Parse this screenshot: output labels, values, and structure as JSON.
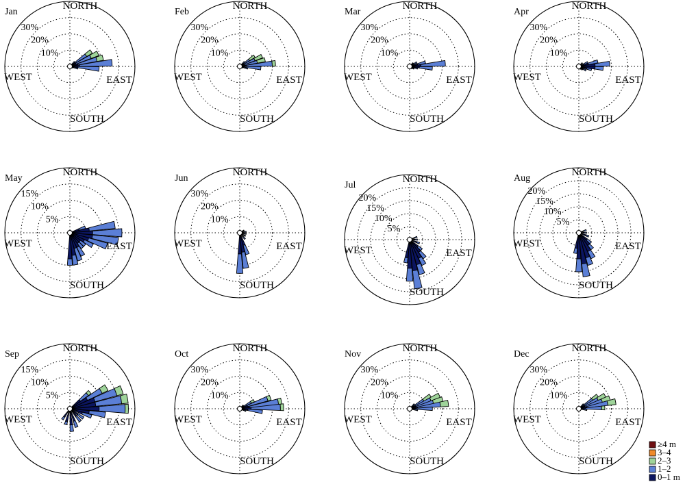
{
  "figure": {
    "direction_labels": {
      "north": "NORTH",
      "south": "SOUTH",
      "east": "EAST",
      "west": "WEST"
    },
    "legend": [
      {
        "label": "≥4 m",
        "color": "#6e0f12"
      },
      {
        "label": "3–4",
        "color": "#f08a2a"
      },
      {
        "label": "2–3",
        "color": "#9fd49a"
      },
      {
        "label": "1–2",
        "color": "#5b7fd6"
      },
      {
        "label": "0–1 m",
        "color": "#0b1560"
      }
    ]
  },
  "chart_data": [
    {
      "type": "rose",
      "title": "Jan",
      "rmax": 40,
      "rings": [
        10,
        20,
        30
      ],
      "ring_labels": [
        "10%",
        "20%",
        "30%"
      ],
      "bins": [
        {
          "dir": 55,
          "stack": [
            4,
            8,
            4
          ]
        },
        {
          "dir": 65,
          "stack": [
            4,
            10,
            5
          ]
        },
        {
          "dir": 75,
          "stack": [
            5,
            12,
            4
          ]
        },
        {
          "dir": 85,
          "stack": [
            6,
            20,
            0
          ]
        },
        {
          "dir": 95,
          "stack": [
            5,
            13,
            0
          ]
        },
        {
          "dir": 105,
          "stack": [
            2,
            3,
            0
          ]
        },
        {
          "dir": 45,
          "stack": [
            2,
            2,
            0
          ]
        },
        {
          "dir": 115,
          "stack": [
            1,
            1,
            0
          ]
        }
      ]
    },
    {
      "type": "rose",
      "title": "Feb",
      "rmax": 40,
      "rings": [
        10,
        20,
        30
      ],
      "ring_labels": [
        "10%",
        "20%",
        "30%"
      ],
      "bins": [
        {
          "dir": 55,
          "stack": [
            2,
            5,
            4
          ]
        },
        {
          "dir": 65,
          "stack": [
            3,
            7,
            5
          ]
        },
        {
          "dir": 75,
          "stack": [
            3,
            8,
            5
          ]
        },
        {
          "dir": 85,
          "stack": [
            4,
            16,
            2
          ]
        },
        {
          "dir": 95,
          "stack": [
            3,
            10,
            0
          ]
        },
        {
          "dir": 105,
          "stack": [
            2,
            3,
            0
          ]
        },
        {
          "dir": 45,
          "stack": [
            2,
            2,
            0
          ]
        },
        {
          "dir": 115,
          "stack": [
            1,
            1,
            0
          ]
        }
      ]
    },
    {
      "type": "rose",
      "title": "Mar",
      "rmax": 40,
      "rings": [
        10,
        20,
        30
      ],
      "ring_labels": [
        "10%",
        "20%",
        "30%"
      ],
      "bins": [
        {
          "dir": 60,
          "stack": [
            2,
            3,
            0
          ]
        },
        {
          "dir": 75,
          "stack": [
            5,
            5,
            0
          ]
        },
        {
          "dir": 85,
          "stack": [
            7,
            15,
            0
          ]
        },
        {
          "dir": 95,
          "stack": [
            6,
            8,
            0
          ]
        },
        {
          "dir": 105,
          "stack": [
            3,
            2,
            0
          ]
        },
        {
          "dir": 45,
          "stack": [
            2,
            1,
            0
          ]
        },
        {
          "dir": 120,
          "stack": [
            2,
            1,
            0
          ]
        },
        {
          "dir": 135,
          "stack": [
            2,
            0,
            0
          ]
        }
      ]
    },
    {
      "type": "rose",
      "title": "Apr",
      "rmax": 40,
      "rings": [
        10,
        20,
        30
      ],
      "ring_labels": [
        "10%",
        "20%",
        "30%"
      ],
      "bins": [
        {
          "dir": 65,
          "stack": [
            3,
            3,
            0
          ]
        },
        {
          "dir": 75,
          "stack": [
            6,
            6,
            0
          ]
        },
        {
          "dir": 85,
          "stack": [
            10,
            9,
            0
          ]
        },
        {
          "dir": 95,
          "stack": [
            10,
            5,
            0
          ]
        },
        {
          "dir": 105,
          "stack": [
            5,
            3,
            0
          ]
        },
        {
          "dir": 120,
          "stack": [
            3,
            2,
            0
          ]
        },
        {
          "dir": 135,
          "stack": [
            2,
            1,
            0
          ]
        },
        {
          "dir": 150,
          "stack": [
            2,
            0,
            0
          ]
        },
        {
          "dir": 45,
          "stack": [
            2,
            1,
            0
          ]
        }
      ]
    },
    {
      "type": "rose",
      "title": "May",
      "rmax": 20,
      "rings": [
        5,
        10,
        15
      ],
      "ring_labels": [
        "5%",
        "10%",
        "15%"
      ],
      "bins": [
        {
          "dir": 70,
          "stack": [
            3,
            2,
            0
          ]
        },
        {
          "dir": 80,
          "stack": [
            6,
            8,
            0
          ]
        },
        {
          "dir": 90,
          "stack": [
            7,
            9,
            0
          ]
        },
        {
          "dir": 100,
          "stack": [
            7,
            8,
            0
          ]
        },
        {
          "dir": 110,
          "stack": [
            6,
            6,
            0
          ]
        },
        {
          "dir": 120,
          "stack": [
            5,
            3,
            0
          ]
        },
        {
          "dir": 130,
          "stack": [
            4,
            2,
            0
          ]
        },
        {
          "dir": 140,
          "stack": [
            4,
            2,
            0
          ]
        },
        {
          "dir": 150,
          "stack": [
            5,
            3,
            0
          ]
        },
        {
          "dir": 160,
          "stack": [
            5,
            4,
            0
          ]
        },
        {
          "dir": 170,
          "stack": [
            7,
            3,
            0
          ]
        },
        {
          "dir": 180,
          "stack": [
            8,
            2,
            0
          ]
        }
      ]
    },
    {
      "type": "rose",
      "title": "Jun",
      "rmax": 40,
      "rings": [
        10,
        20,
        30
      ],
      "ring_labels": [
        "10%",
        "20%",
        "30%"
      ],
      "bins": [
        {
          "dir": 60,
          "stack": [
            2,
            1,
            0
          ]
        },
        {
          "dir": 80,
          "stack": [
            3,
            1,
            0
          ]
        },
        {
          "dir": 100,
          "stack": [
            3,
            1,
            0
          ]
        },
        {
          "dir": 120,
          "stack": [
            3,
            1,
            0
          ]
        },
        {
          "dir": 140,
          "stack": [
            3,
            2,
            0
          ]
        },
        {
          "dir": 160,
          "stack": [
            8,
            6,
            0
          ]
        },
        {
          "dir": 170,
          "stack": [
            12,
            10,
            0
          ]
        },
        {
          "dir": 180,
          "stack": [
            13,
            12,
            0
          ]
        }
      ]
    },
    {
      "type": "rose",
      "title": "Jul",
      "rmax": 25,
      "rings": [
        5,
        10,
        15,
        20
      ],
      "ring_labels": [
        "5%",
        "10%",
        "15%",
        "20%"
      ],
      "bins": [
        {
          "dir": 70,
          "stack": [
            2,
            1,
            0
          ]
        },
        {
          "dir": 90,
          "stack": [
            2,
            1,
            0
          ]
        },
        {
          "dir": 110,
          "stack": [
            3,
            1,
            0
          ]
        },
        {
          "dir": 130,
          "stack": [
            4,
            2,
            0
          ]
        },
        {
          "dir": 140,
          "stack": [
            6,
            3,
            0
          ]
        },
        {
          "dir": 150,
          "stack": [
            8,
            3,
            0
          ]
        },
        {
          "dir": 160,
          "stack": [
            10,
            4,
            0
          ]
        },
        {
          "dir": 170,
          "stack": [
            12,
            7,
            0
          ]
        },
        {
          "dir": 180,
          "stack": [
            11,
            5,
            0
          ]
        },
        {
          "dir": 190,
          "stack": [
            7,
            2,
            0
          ]
        }
      ]
    },
    {
      "type": "rose",
      "title": "Aug",
      "rmax": 25,
      "rings": [
        5,
        10,
        15,
        20
      ],
      "ring_labels": [
        "5%",
        "10%",
        "15%",
        "20%"
      ],
      "bins": [
        {
          "dir": 70,
          "stack": [
            2,
            1,
            0
          ]
        },
        {
          "dir": 90,
          "stack": [
            2,
            1,
            0
          ]
        },
        {
          "dir": 110,
          "stack": [
            3,
            1,
            0
          ]
        },
        {
          "dir": 130,
          "stack": [
            4,
            2,
            0
          ]
        },
        {
          "dir": 140,
          "stack": [
            6,
            2,
            0
          ]
        },
        {
          "dir": 150,
          "stack": [
            8,
            3,
            0
          ]
        },
        {
          "dir": 160,
          "stack": [
            10,
            3,
            0
          ]
        },
        {
          "dir": 170,
          "stack": [
            12,
            5,
            0
          ]
        },
        {
          "dir": 180,
          "stack": [
            10,
            5,
            0
          ]
        },
        {
          "dir": 190,
          "stack": [
            6,
            2,
            0
          ]
        }
      ]
    },
    {
      "type": "rose",
      "title": "Sep",
      "rmax": 20,
      "rings": [
        5,
        10,
        15
      ],
      "ring_labels": [
        "5%",
        "10%",
        "15%"
      ],
      "bins": [
        {
          "dir": 50,
          "stack": [
            4,
            3,
            1
          ]
        },
        {
          "dir": 60,
          "stack": [
            6,
            5,
            2
          ]
        },
        {
          "dir": 70,
          "stack": [
            8,
            7,
            2
          ]
        },
        {
          "dir": 80,
          "stack": [
            8,
            8,
            2
          ]
        },
        {
          "dir": 90,
          "stack": [
            9,
            8,
            1
          ]
        },
        {
          "dir": 100,
          "stack": [
            6,
            5,
            0
          ]
        },
        {
          "dir": 110,
          "stack": [
            4,
            3,
            0
          ]
        },
        {
          "dir": 125,
          "stack": [
            3,
            2,
            0
          ]
        },
        {
          "dir": 140,
          "stack": [
            3,
            2,
            0
          ]
        },
        {
          "dir": 160,
          "stack": [
            4,
            2,
            0
          ]
        },
        {
          "dir": 175,
          "stack": [
            5,
            2,
            0
          ]
        },
        {
          "dir": 195,
          "stack": [
            4,
            1,
            0
          ]
        },
        {
          "dir": 215,
          "stack": [
            3,
            1,
            0
          ]
        }
      ]
    },
    {
      "type": "rose",
      "title": "Oct",
      "rmax": 40,
      "rings": [
        10,
        20,
        30
      ],
      "ring_labels": [
        "10%",
        "20%",
        "30%"
      ],
      "bins": [
        {
          "dir": 60,
          "stack": [
            3,
            5,
            2
          ]
        },
        {
          "dir": 70,
          "stack": [
            5,
            13,
            2
          ]
        },
        {
          "dir": 80,
          "stack": [
            6,
            18,
            2
          ]
        },
        {
          "dir": 88,
          "stack": [
            7,
            18,
            2
          ]
        },
        {
          "dir": 98,
          "stack": [
            5,
            9,
            0
          ]
        },
        {
          "dir": 110,
          "stack": [
            2,
            2,
            0
          ]
        },
        {
          "dir": 45,
          "stack": [
            2,
            1,
            0
          ]
        }
      ]
    },
    {
      "type": "rose",
      "title": "Nov",
      "rmax": 40,
      "rings": [
        10,
        20,
        30
      ],
      "ring_labels": [
        "10%",
        "20%",
        "30%"
      ],
      "bins": [
        {
          "dir": 58,
          "stack": [
            3,
            7,
            5
          ]
        },
        {
          "dir": 66,
          "stack": [
            4,
            10,
            6
          ]
        },
        {
          "dir": 74,
          "stack": [
            4,
            11,
            6
          ]
        },
        {
          "dir": 82,
          "stack": [
            5,
            14,
            5
          ]
        },
        {
          "dir": 90,
          "stack": [
            4,
            10,
            0
          ]
        },
        {
          "dir": 100,
          "stack": [
            2,
            3,
            0
          ]
        },
        {
          "dir": 45,
          "stack": [
            2,
            2,
            0
          ]
        }
      ]
    },
    {
      "type": "rose",
      "title": "Dec",
      "rmax": 40,
      "rings": [
        10,
        20,
        30
      ],
      "ring_labels": [
        "10%",
        "20%",
        "30%"
      ],
      "bins": [
        {
          "dir": 55,
          "stack": [
            3,
            7,
            4
          ]
        },
        {
          "dir": 63,
          "stack": [
            4,
            9,
            5
          ]
        },
        {
          "dir": 71,
          "stack": [
            4,
            11,
            5
          ]
        },
        {
          "dir": 79,
          "stack": [
            5,
            13,
            5
          ]
        },
        {
          "dir": 88,
          "stack": [
            4,
            10,
            2
          ]
        },
        {
          "dir": 98,
          "stack": [
            2,
            3,
            0
          ]
        },
        {
          "dir": 45,
          "stack": [
            2,
            2,
            0
          ]
        }
      ]
    }
  ]
}
